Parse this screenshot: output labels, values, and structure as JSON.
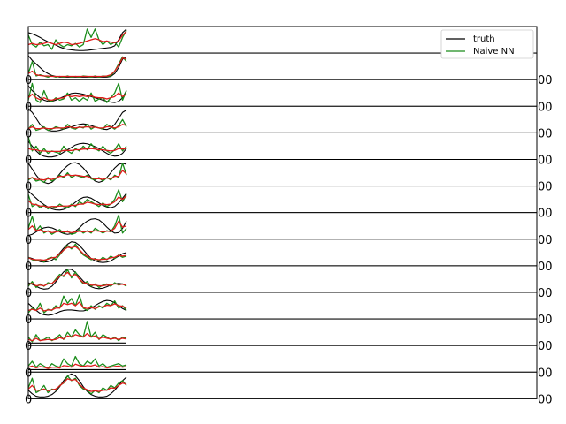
{
  "chart_data": {
    "type": "line",
    "legend": {
      "placement": "top-right",
      "entries": [
        {
          "name": "truth",
          "color": "#000000"
        },
        {
          "name": "Naive NN",
          "color": "#1a8c1a"
        }
      ]
    },
    "panel_count": 14,
    "visible_tick_fragments": {
      "left": [
        "0",
        "0",
        "0",
        "0",
        "0",
        "0",
        "0",
        "0",
        "0",
        "0",
        "0",
        "0",
        "0"
      ],
      "right": [
        "00",
        "00",
        "00",
        "00",
        "00",
        "00",
        "00",
        "00",
        "00",
        "00",
        "00",
        "00",
        "00"
      ]
    },
    "series_colors": {
      "truth": "#000000",
      "Naive NN": "#1a8c1a",
      "third": "#e01b1b"
    },
    "panels": [
      {
        "truth": [
          0.8,
          0.75,
          0.68,
          0.6,
          0.5,
          0.42,
          0.35,
          0.28,
          0.2,
          0.14,
          0.1,
          0.08,
          0.06,
          0.05,
          0.05,
          0.06,
          0.08,
          0.1,
          0.12,
          0.14,
          0.16,
          0.18,
          0.25,
          0.5,
          0.8,
          0.95
        ],
        "green": [
          0.7,
          0.3,
          0.2,
          0.4,
          0.25,
          0.3,
          0.1,
          0.5,
          0.3,
          0.2,
          0.3,
          0.25,
          0.35,
          0.2,
          0.3,
          0.95,
          0.6,
          0.95,
          0.5,
          0.3,
          0.45,
          0.3,
          0.4,
          0.2,
          0.6,
          0.9
        ],
        "red": [
          0.3,
          0.35,
          0.3,
          0.32,
          0.35,
          0.4,
          0.35,
          0.3,
          0.35,
          0.4,
          0.38,
          0.3,
          0.32,
          0.35,
          0.4,
          0.45,
          0.5,
          0.55,
          0.5,
          0.42,
          0.45,
          0.4,
          0.38,
          0.45,
          0.7,
          0.85
        ]
      },
      {
        "truth": [
          0.95,
          0.75,
          0.6,
          0.45,
          0.3,
          0.2,
          0.12,
          0.08,
          0.05,
          0.05,
          0.05,
          0.05,
          0.05,
          0.05,
          0.05,
          0.05,
          0.05,
          0.05,
          0.05,
          0.05,
          0.05,
          0.08,
          0.2,
          0.45,
          0.8,
          0.9
        ],
        "green": [
          0.2,
          0.7,
          0.1,
          0.15,
          0.1,
          0.05,
          0.1,
          0.05,
          0.08,
          0.05,
          0.1,
          0.05,
          0.08,
          0.05,
          0.1,
          0.08,
          0.05,
          0.1,
          0.05,
          0.1,
          0.08,
          0.1,
          0.3,
          0.6,
          0.9,
          0.7
        ],
        "red": [
          0.2,
          0.3,
          0.15,
          0.12,
          0.1,
          0.1,
          0.08,
          0.08,
          0.08,
          0.08,
          0.08,
          0.08,
          0.08,
          0.08,
          0.08,
          0.08,
          0.08,
          0.08,
          0.08,
          0.08,
          0.1,
          0.15,
          0.3,
          0.55,
          0.85,
          0.8
        ]
      },
      {
        "truth": [
          0.8,
          0.6,
          0.45,
          0.3,
          0.2,
          0.15,
          0.15,
          0.2,
          0.28,
          0.35,
          0.42,
          0.48,
          0.5,
          0.48,
          0.45,
          0.4,
          0.35,
          0.3,
          0.25,
          0.2,
          0.15,
          0.12,
          0.1,
          0.15,
          0.3,
          0.6
        ],
        "green": [
          0.2,
          0.9,
          0.2,
          0.1,
          0.6,
          0.2,
          0.15,
          0.3,
          0.2,
          0.25,
          0.5,
          0.2,
          0.3,
          0.15,
          0.3,
          0.2,
          0.5,
          0.15,
          0.25,
          0.3,
          0.1,
          0.3,
          0.5,
          0.9,
          0.2,
          0.6
        ],
        "red": [
          0.3,
          0.45,
          0.3,
          0.22,
          0.3,
          0.22,
          0.2,
          0.25,
          0.28,
          0.3,
          0.4,
          0.35,
          0.38,
          0.35,
          0.38,
          0.35,
          0.38,
          0.32,
          0.3,
          0.3,
          0.25,
          0.3,
          0.35,
          0.5,
          0.35,
          0.45
        ]
      },
      {
        "truth": [
          0.95,
          0.8,
          0.55,
          0.3,
          0.15,
          0.05,
          0.02,
          0.02,
          0.05,
          0.1,
          0.15,
          0.2,
          0.25,
          0.3,
          0.32,
          0.3,
          0.25,
          0.2,
          0.15,
          0.1,
          0.08,
          0.15,
          0.3,
          0.55,
          0.8,
          0.9
        ],
        "green": [
          0.1,
          0.3,
          0.05,
          0.1,
          0.2,
          0.05,
          0.1,
          0.2,
          0.15,
          0.1,
          0.3,
          0.15,
          0.1,
          0.2,
          0.15,
          0.3,
          0.1,
          0.2,
          0.15,
          0.1,
          0.3,
          0.2,
          0.1,
          0.25,
          0.5,
          0.2
        ],
        "red": [
          0.12,
          0.2,
          0.12,
          0.12,
          0.15,
          0.12,
          0.12,
          0.15,
          0.15,
          0.15,
          0.2,
          0.18,
          0.15,
          0.18,
          0.18,
          0.2,
          0.18,
          0.18,
          0.15,
          0.15,
          0.2,
          0.2,
          0.15,
          0.2,
          0.3,
          0.25
        ]
      },
      {
        "truth": [
          0.7,
          0.5,
          0.3,
          0.15,
          0.08,
          0.05,
          0.05,
          0.08,
          0.15,
          0.25,
          0.35,
          0.45,
          0.55,
          0.6,
          0.62,
          0.6,
          0.55,
          0.48,
          0.4,
          0.3,
          0.2,
          0.12,
          0.08,
          0.1,
          0.2,
          0.4
        ],
        "green": [
          0.9,
          0.3,
          0.5,
          0.2,
          0.4,
          0.2,
          0.3,
          0.25,
          0.2,
          0.5,
          0.3,
          0.2,
          0.4,
          0.3,
          0.5,
          0.35,
          0.6,
          0.4,
          0.3,
          0.5,
          0.3,
          0.2,
          0.35,
          0.6,
          0.3,
          0.5
        ],
        "red": [
          0.4,
          0.35,
          0.35,
          0.3,
          0.3,
          0.28,
          0.28,
          0.28,
          0.28,
          0.32,
          0.32,
          0.32,
          0.35,
          0.35,
          0.38,
          0.38,
          0.4,
          0.38,
          0.35,
          0.35,
          0.32,
          0.3,
          0.32,
          0.4,
          0.38,
          0.4
        ]
      },
      {
        "truth": [
          0.9,
          0.65,
          0.4,
          0.2,
          0.1,
          0.05,
          0.1,
          0.25,
          0.45,
          0.65,
          0.8,
          0.9,
          0.92,
          0.85,
          0.7,
          0.5,
          0.3,
          0.15,
          0.1,
          0.15,
          0.3,
          0.5,
          0.7,
          0.85,
          0.9,
          0.85
        ],
        "green": [
          0.2,
          0.3,
          0.15,
          0.2,
          0.1,
          0.3,
          0.15,
          0.25,
          0.4,
          0.3,
          0.5,
          0.3,
          0.4,
          0.35,
          0.3,
          0.4,
          0.25,
          0.2,
          0.3,
          0.15,
          0.3,
          0.2,
          0.4,
          0.3,
          0.9,
          0.4
        ],
        "red": [
          0.25,
          0.3,
          0.22,
          0.22,
          0.2,
          0.25,
          0.22,
          0.28,
          0.35,
          0.35,
          0.42,
          0.38,
          0.4,
          0.38,
          0.35,
          0.35,
          0.28,
          0.25,
          0.25,
          0.22,
          0.28,
          0.25,
          0.35,
          0.35,
          0.6,
          0.45
        ]
      },
      {
        "truth": [
          0.85,
          0.7,
          0.55,
          0.4,
          0.28,
          0.18,
          0.1,
          0.06,
          0.05,
          0.08,
          0.15,
          0.25,
          0.38,
          0.5,
          0.58,
          0.6,
          0.55,
          0.45,
          0.35,
          0.25,
          0.18,
          0.15,
          0.2,
          0.35,
          0.55,
          0.75
        ],
        "green": [
          0.7,
          0.2,
          0.3,
          0.15,
          0.25,
          0.1,
          0.2,
          0.15,
          0.3,
          0.2,
          0.15,
          0.3,
          0.2,
          0.4,
          0.3,
          0.5,
          0.4,
          0.3,
          0.2,
          0.35,
          0.2,
          0.3,
          0.5,
          0.9,
          0.4,
          0.7
        ],
        "red": [
          0.45,
          0.3,
          0.28,
          0.22,
          0.22,
          0.18,
          0.2,
          0.2,
          0.22,
          0.22,
          0.22,
          0.25,
          0.25,
          0.3,
          0.3,
          0.38,
          0.35,
          0.3,
          0.28,
          0.3,
          0.28,
          0.3,
          0.4,
          0.6,
          0.5,
          0.65
        ]
      },
      {
        "truth": [
          0.1,
          0.15,
          0.25,
          0.35,
          0.42,
          0.45,
          0.42,
          0.35,
          0.25,
          0.18,
          0.15,
          0.18,
          0.28,
          0.42,
          0.58,
          0.7,
          0.78,
          0.8,
          0.75,
          0.62,
          0.45,
          0.3,
          0.2,
          0.22,
          0.4,
          0.7
        ],
        "green": [
          0.4,
          0.9,
          0.3,
          0.5,
          0.2,
          0.3,
          0.15,
          0.25,
          0.35,
          0.2,
          0.3,
          0.15,
          0.2,
          0.35,
          0.2,
          0.3,
          0.2,
          0.4,
          0.3,
          0.2,
          0.3,
          0.25,
          0.5,
          0.95,
          0.2,
          0.4
        ],
        "red": [
          0.35,
          0.5,
          0.3,
          0.35,
          0.25,
          0.28,
          0.22,
          0.25,
          0.28,
          0.25,
          0.25,
          0.22,
          0.25,
          0.28,
          0.25,
          0.28,
          0.25,
          0.3,
          0.28,
          0.25,
          0.28,
          0.28,
          0.4,
          0.7,
          0.45,
          0.5
        ]
      },
      {
        "truth": [
          0.3,
          0.25,
          0.18,
          0.12,
          0.1,
          0.12,
          0.18,
          0.3,
          0.48,
          0.68,
          0.85,
          0.95,
          0.92,
          0.8,
          0.62,
          0.42,
          0.25,
          0.15,
          0.1,
          0.08,
          0.1,
          0.15,
          0.25,
          0.35,
          0.45,
          0.5
        ],
        "green": [
          0.3,
          0.2,
          0.15,
          0.2,
          0.1,
          0.25,
          0.3,
          0.2,
          0.4,
          0.6,
          0.8,
          0.65,
          0.85,
          0.6,
          0.4,
          0.3,
          0.2,
          0.25,
          0.15,
          0.3,
          0.2,
          0.35,
          0.25,
          0.4,
          0.3,
          0.35
        ],
        "red": [
          0.28,
          0.22,
          0.2,
          0.2,
          0.18,
          0.22,
          0.28,
          0.3,
          0.45,
          0.6,
          0.72,
          0.7,
          0.75,
          0.62,
          0.45,
          0.35,
          0.25,
          0.22,
          0.2,
          0.22,
          0.22,
          0.28,
          0.3,
          0.38,
          0.35,
          0.38
        ]
      },
      {
        "truth": [
          0.35,
          0.28,
          0.2,
          0.12,
          0.08,
          0.1,
          0.2,
          0.38,
          0.6,
          0.8,
          0.92,
          0.9,
          0.78,
          0.6,
          0.42,
          0.28,
          0.18,
          0.12,
          0.1,
          0.12,
          0.18,
          0.25,
          0.3,
          0.32,
          0.3,
          0.28
        ],
        "green": [
          0.2,
          0.4,
          0.15,
          0.3,
          0.2,
          0.35,
          0.3,
          0.5,
          0.7,
          0.6,
          0.9,
          0.55,
          0.8,
          0.5,
          0.3,
          0.4,
          0.2,
          0.3,
          0.15,
          0.25,
          0.3,
          0.2,
          0.35,
          0.25,
          0.3,
          0.2
        ],
        "red": [
          0.28,
          0.32,
          0.22,
          0.25,
          0.22,
          0.3,
          0.32,
          0.45,
          0.62,
          0.65,
          0.78,
          0.62,
          0.7,
          0.5,
          0.35,
          0.32,
          0.25,
          0.25,
          0.22,
          0.22,
          0.25,
          0.25,
          0.3,
          0.28,
          0.28,
          0.25
        ]
      },
      {
        "truth": [
          0.6,
          0.45,
          0.3,
          0.18,
          0.12,
          0.1,
          0.12,
          0.18,
          0.25,
          0.3,
          0.32,
          0.32,
          0.3,
          0.28,
          0.28,
          0.32,
          0.4,
          0.5,
          0.6,
          0.68,
          0.72,
          0.7,
          0.62,
          0.5,
          0.38,
          0.3
        ],
        "green": [
          0.2,
          0.4,
          0.3,
          0.6,
          0.2,
          0.35,
          0.3,
          0.5,
          0.4,
          0.9,
          0.6,
          0.8,
          0.5,
          0.95,
          0.4,
          0.3,
          0.5,
          0.35,
          0.5,
          0.4,
          0.6,
          0.5,
          0.7,
          0.4,
          0.5,
          0.3
        ],
        "red": [
          0.3,
          0.35,
          0.3,
          0.4,
          0.28,
          0.32,
          0.32,
          0.4,
          0.4,
          0.6,
          0.55,
          0.6,
          0.5,
          0.65,
          0.42,
          0.38,
          0.42,
          0.38,
          0.45,
          0.45,
          0.52,
          0.5,
          0.58,
          0.5,
          0.48,
          0.4
        ]
      },
      {
        "truth": [
          0.05,
          0.05,
          0.05,
          0.05,
          0.05,
          0.05,
          0.05,
          0.05,
          0.05,
          0.05,
          0.05,
          0.05,
          0.05,
          0.05,
          0.05,
          0.05,
          0.05,
          0.05,
          0.05,
          0.05,
          0.05,
          0.05,
          0.05,
          0.05,
          0.05,
          0.05
        ],
        "green": [
          0.3,
          0.1,
          0.4,
          0.15,
          0.2,
          0.3,
          0.15,
          0.25,
          0.4,
          0.2,
          0.5,
          0.3,
          0.6,
          0.4,
          0.3,
          0.95,
          0.3,
          0.5,
          0.2,
          0.4,
          0.3,
          0.2,
          0.3,
          0.15,
          0.3,
          0.25
        ],
        "red": [
          0.2,
          0.15,
          0.25,
          0.15,
          0.18,
          0.2,
          0.18,
          0.2,
          0.28,
          0.22,
          0.35,
          0.3,
          0.4,
          0.35,
          0.3,
          0.45,
          0.3,
          0.35,
          0.22,
          0.3,
          0.25,
          0.22,
          0.25,
          0.2,
          0.25,
          0.22
        ]
      },
      {
        "truth": [
          0.05,
          0.05,
          0.05,
          0.05,
          0.05,
          0.05,
          0.05,
          0.05,
          0.05,
          0.05,
          0.05,
          0.05,
          0.05,
          0.05,
          0.05,
          0.05,
          0.05,
          0.05,
          0.05,
          0.05,
          0.05,
          0.05,
          0.05,
          0.05,
          0.05,
          0.05
        ],
        "green": [
          0.2,
          0.4,
          0.15,
          0.3,
          0.2,
          0.1,
          0.3,
          0.2,
          0.15,
          0.5,
          0.3,
          0.2,
          0.6,
          0.3,
          0.2,
          0.4,
          0.3,
          0.5,
          0.2,
          0.3,
          0.15,
          0.2,
          0.25,
          0.3,
          0.2,
          0.25
        ],
        "red": [
          0.15,
          0.2,
          0.12,
          0.18,
          0.15,
          0.1,
          0.15,
          0.15,
          0.12,
          0.22,
          0.2,
          0.15,
          0.28,
          0.22,
          0.18,
          0.22,
          0.2,
          0.25,
          0.15,
          0.18,
          0.12,
          0.15,
          0.18,
          0.2,
          0.15,
          0.18
        ]
      },
      {
        "truth": [
          0.3,
          0.15,
          0.05,
          0.02,
          0.02,
          0.05,
          0.12,
          0.25,
          0.45,
          0.7,
          0.9,
          0.98,
          0.9,
          0.7,
          0.45,
          0.25,
          0.12,
          0.05,
          0.02,
          0.02,
          0.05,
          0.15,
          0.3,
          0.5,
          0.7,
          0.85
        ],
        "green": [
          0.4,
          0.8,
          0.2,
          0.3,
          0.5,
          0.2,
          0.35,
          0.3,
          0.5,
          0.6,
          0.9,
          0.7,
          0.8,
          0.5,
          0.35,
          0.3,
          0.15,
          0.3,
          0.2,
          0.4,
          0.3,
          0.5,
          0.4,
          0.6,
          0.7,
          0.5
        ],
        "red": [
          0.35,
          0.5,
          0.3,
          0.3,
          0.35,
          0.28,
          0.32,
          0.35,
          0.48,
          0.62,
          0.78,
          0.72,
          0.75,
          0.55,
          0.4,
          0.32,
          0.25,
          0.28,
          0.25,
          0.3,
          0.3,
          0.4,
          0.38,
          0.5,
          0.6,
          0.55
        ]
      }
    ]
  }
}
